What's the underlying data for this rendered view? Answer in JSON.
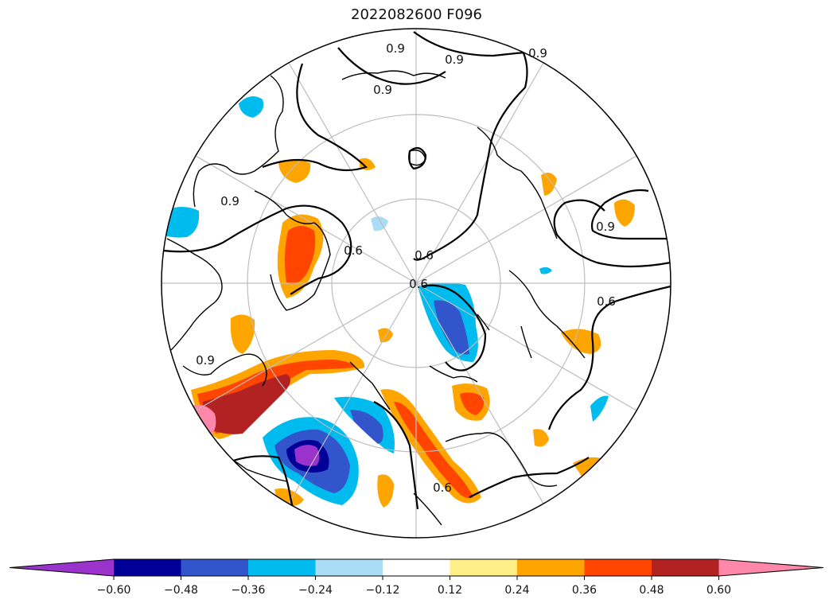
{
  "title": "2022082600 F096",
  "map": {
    "projection": "north-polar-stereographic",
    "contour_labels": [
      "0.9",
      "0.6"
    ],
    "contour_color": "#000000",
    "gridline_color": "#bdbdbd",
    "coastline_color": "#000000"
  },
  "colorbar": {
    "orientation": "horizontal",
    "extend": "both",
    "levels": [
      -0.6,
      -0.48,
      -0.36,
      -0.24,
      -0.12,
      0.12,
      0.24,
      0.36,
      0.48,
      0.6
    ],
    "tick_labels": [
      "−0.60",
      "−0.48",
      "−0.36",
      "−0.24",
      "−0.12",
      "0.12",
      "0.24",
      "0.36",
      "0.48",
      "0.60"
    ],
    "colors": [
      "#9933CC",
      "#000099",
      "#3355CC",
      "#00BBEE",
      "#AADDF5",
      "#FFFFFF",
      "#FFEE88",
      "#FFA500",
      "#FF4500",
      "#B22222",
      "#FF88AA"
    ]
  }
}
